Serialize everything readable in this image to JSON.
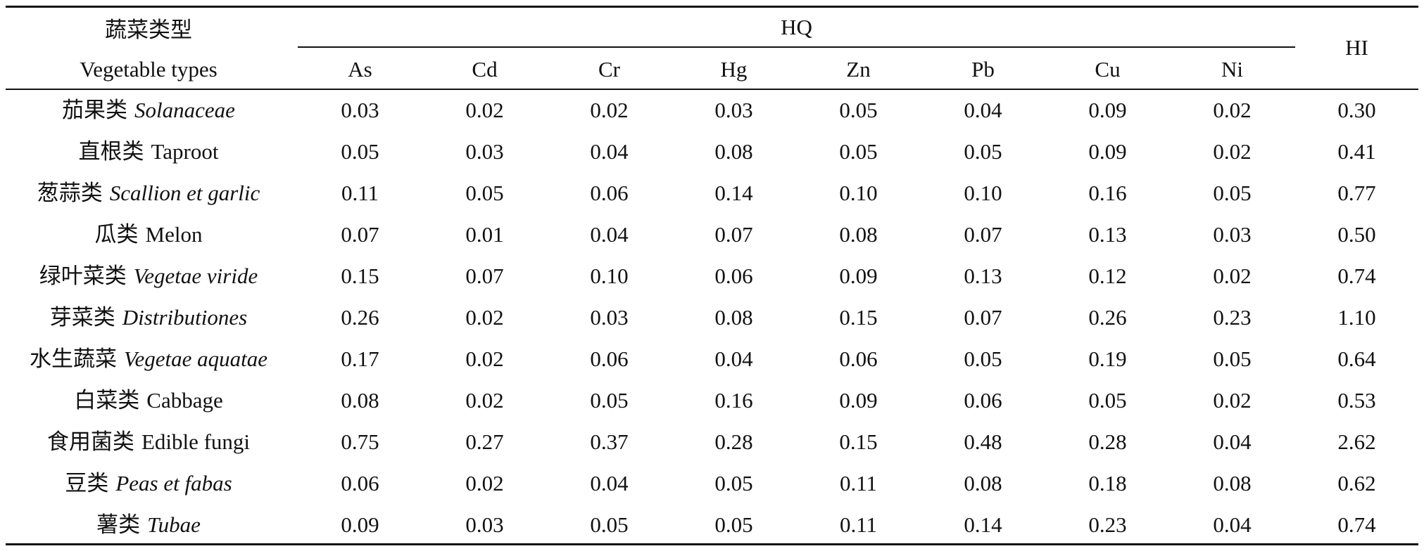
{
  "table": {
    "header": {
      "type_cn": "蔬菜类型",
      "type_en": "Vegetable types",
      "hq_label": "HQ",
      "hi_label": "HI",
      "elements": [
        "As",
        "Cd",
        "Cr",
        "Hg",
        "Zn",
        "Pb",
        "Cu",
        "Ni"
      ]
    },
    "rows": [
      {
        "cn": "茄果类",
        "en": "Solanaceae",
        "italic": true,
        "values": [
          "0.03",
          "0.02",
          "0.02",
          "0.03",
          "0.05",
          "0.04",
          "0.09",
          "0.02"
        ],
        "hi": "0.30"
      },
      {
        "cn": "直根类",
        "en": "Taproot",
        "italic": false,
        "values": [
          "0.05",
          "0.03",
          "0.04",
          "0.08",
          "0.05",
          "0.05",
          "0.09",
          "0.02"
        ],
        "hi": "0.41"
      },
      {
        "cn": "葱蒜类",
        "en": "Scallion et garlic",
        "italic": true,
        "values": [
          "0.11",
          "0.05",
          "0.06",
          "0.14",
          "0.10",
          "0.10",
          "0.16",
          "0.05"
        ],
        "hi": "0.77"
      },
      {
        "cn": "瓜类",
        "en": "Melon",
        "italic": false,
        "values": [
          "0.07",
          "0.01",
          "0.04",
          "0.07",
          "0.08",
          "0.07",
          "0.13",
          "0.03"
        ],
        "hi": "0.50"
      },
      {
        "cn": "绿叶菜类",
        "en": "Vegetae viride",
        "italic": true,
        "values": [
          "0.15",
          "0.07",
          "0.10",
          "0.06",
          "0.09",
          "0.13",
          "0.12",
          "0.02"
        ],
        "hi": "0.74"
      },
      {
        "cn": "芽菜类",
        "en": "Distributiones",
        "italic": true,
        "values": [
          "0.26",
          "0.02",
          "0.03",
          "0.08",
          "0.15",
          "0.07",
          "0.26",
          "0.23"
        ],
        "hi": "1.10"
      },
      {
        "cn": "水生蔬菜",
        "en": "Vegetae aquatae",
        "italic": true,
        "values": [
          "0.17",
          "0.02",
          "0.06",
          "0.04",
          "0.06",
          "0.05",
          "0.19",
          "0.05"
        ],
        "hi": "0.64"
      },
      {
        "cn": "白菜类",
        "en": "Cabbage",
        "italic": false,
        "values": [
          "0.08",
          "0.02",
          "0.05",
          "0.16",
          "0.09",
          "0.06",
          "0.05",
          "0.02"
        ],
        "hi": "0.53"
      },
      {
        "cn": "食用菌类",
        "en": "Edible fungi",
        "italic": false,
        "values": [
          "0.75",
          "0.27",
          "0.37",
          "0.28",
          "0.15",
          "0.48",
          "0.28",
          "0.04"
        ],
        "hi": "2.62"
      },
      {
        "cn": "豆类",
        "en": "Peas et fabas",
        "italic": true,
        "values": [
          "0.06",
          "0.02",
          "0.04",
          "0.05",
          "0.11",
          "0.08",
          "0.18",
          "0.08"
        ],
        "hi": "0.62"
      },
      {
        "cn": "薯类",
        "en": "Tubae",
        "italic": true,
        "values": [
          "0.09",
          "0.03",
          "0.05",
          "0.05",
          "0.11",
          "0.14",
          "0.23",
          "0.04"
        ],
        "hi": "0.74"
      }
    ]
  }
}
